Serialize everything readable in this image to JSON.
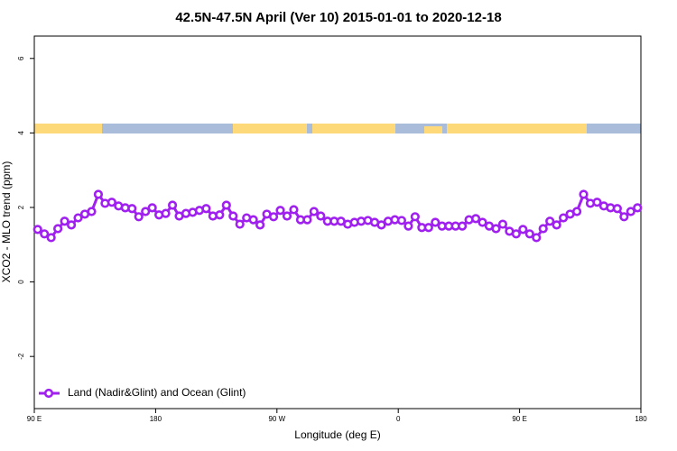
{
  "chart_data": {
    "type": "line",
    "title": "42.5N-47.5N April (Ver 10)   2015-01-01 to 2020-12-18",
    "xlabel": "Longitude (deg E)",
    "ylabel": "XCO2 - MLO trend (ppm)",
    "xlim": [
      90,
      540
    ],
    "ylim": [
      -3.4,
      6.6
    ],
    "xticks": [
      {
        "value": 90,
        "label": "90 E"
      },
      180,
      {
        "value": 270,
        "label": "90 W"
      },
      {
        "value": 360,
        "label": "0"
      },
      {
        "value": 450,
        "label": "90 E"
      },
      {
        "value": 540,
        "label": "180"
      }
    ],
    "yticks": [
      -2,
      0,
      2,
      4,
      6
    ],
    "legend": "bottomleft",
    "x": [
      92.5,
      97.5,
      102.5,
      107.5,
      112.5,
      117.5,
      122.5,
      127.5,
      132.5,
      137.5,
      142.5,
      147.5,
      152.5,
      157.5,
      162.5,
      167.5,
      172.5,
      177.5,
      182.5,
      187.5,
      192.5,
      197.5,
      202.5,
      207.5,
      212.5,
      217.5,
      222.5,
      227.5,
      232.5,
      237.5,
      242.5,
      247.5,
      252.5,
      257.5,
      262.5,
      267.5,
      272.5,
      277.5,
      282.5,
      287.5,
      292.5,
      297.5,
      302.5,
      307.5,
      312.5,
      317.5,
      322.5,
      327.5,
      332.5,
      337.5,
      342.5,
      347.5,
      352.5,
      357.5,
      362.5,
      367.5,
      372.5,
      377.5,
      382.5,
      387.5,
      392.5,
      397.5,
      402.5,
      407.5,
      412.5,
      417.5,
      422.5,
      427.5,
      432.5,
      437.5,
      442.5,
      447.5,
      452.5,
      457.5,
      462.5,
      467.5,
      472.5,
      477.5,
      482.5,
      487.5,
      492.5,
      497.5,
      502.5,
      507.5,
      512.5,
      517.5,
      522.5,
      527.5,
      532.5,
      537.5
    ],
    "series": [
      {
        "name": "Land (Nadir&Glint) and Ocean (Glint)",
        "color": "#a020f0",
        "values": [
          1.41,
          1.29,
          1.19,
          1.43,
          1.63,
          1.53,
          1.72,
          1.82,
          1.89,
          2.35,
          2.11,
          2.14,
          2.04,
          1.99,
          1.97,
          1.75,
          1.89,
          1.99,
          1.8,
          1.84,
          2.06,
          1.77,
          1.84,
          1.87,
          1.92,
          1.97,
          1.77,
          1.8,
          2.06,
          1.77,
          1.55,
          1.72,
          1.67,
          1.53,
          1.82,
          1.75,
          1.92,
          1.77,
          1.94,
          1.67,
          1.67,
          1.89,
          1.77,
          1.63,
          1.63,
          1.63,
          1.55,
          1.6,
          1.63,
          1.65,
          1.6,
          1.53,
          1.63,
          1.67,
          1.65,
          1.5,
          1.75,
          1.46,
          1.46,
          1.6,
          1.5,
          1.5,
          1.5,
          1.5,
          1.67,
          1.7,
          1.6,
          1.5,
          1.43,
          1.55,
          1.36,
          1.29,
          1.41,
          1.29,
          1.19,
          1.43,
          1.63,
          1.53,
          1.72,
          1.82,
          1.89,
          2.35,
          2.11,
          2.14,
          2.04,
          1.99,
          1.97,
          1.75,
          1.89,
          1.99
        ]
      }
    ]
  }
}
